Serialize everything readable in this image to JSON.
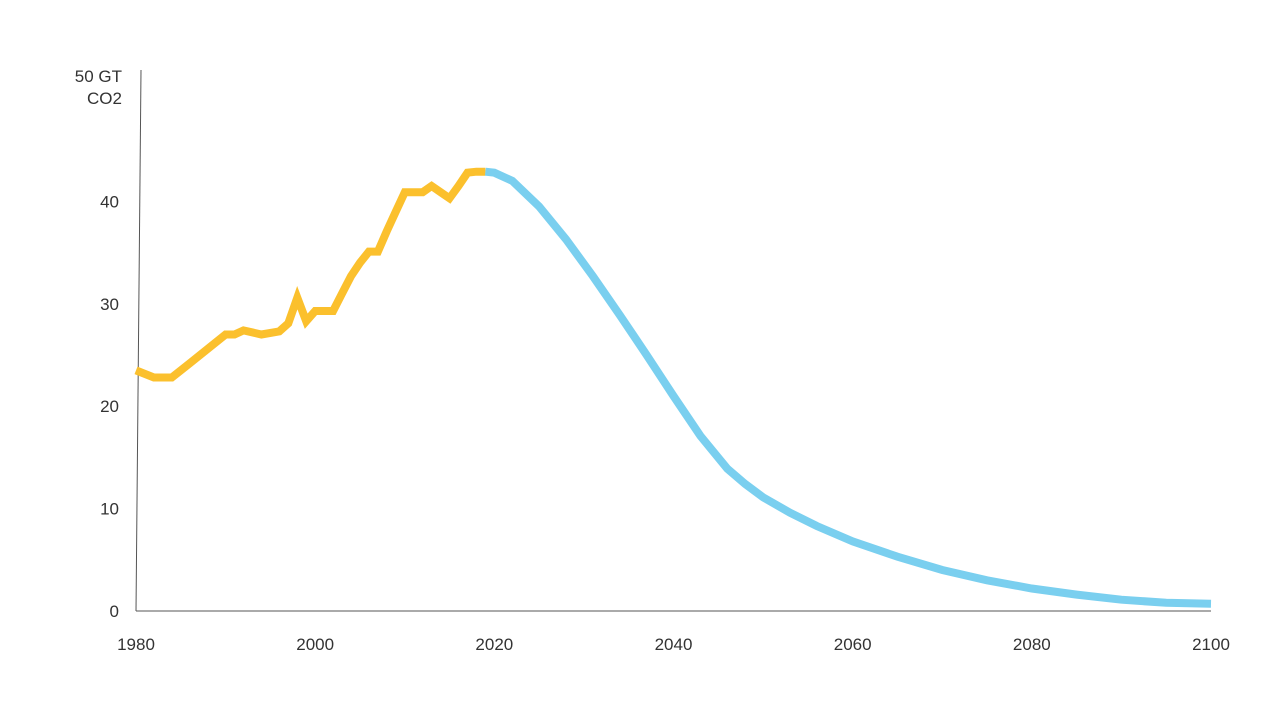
{
  "chart_data": {
    "type": "line",
    "title": "",
    "xlabel": "",
    "ylabel": "",
    "y_unit_label": [
      "50 GT",
      "CO2"
    ],
    "xlim": [
      1980,
      2100
    ],
    "ylim": [
      0,
      50
    ],
    "x_ticks": [
      1980,
      2000,
      2020,
      2040,
      2060,
      2080,
      2100
    ],
    "x_tick_labels": [
      "1980",
      "2000",
      "2020",
      "2040",
      "2060",
      "2080",
      "2100"
    ],
    "y_ticks": [
      0,
      10,
      20,
      30,
      40
    ],
    "y_tick_labels": [
      "0",
      "10",
      "20",
      "30",
      "40"
    ],
    "grid": false,
    "legend": "none",
    "series": [
      {
        "color": "#FBC02D",
        "x": [
          1980,
          1982,
          1984,
          1986,
          1988,
          1990,
          1991,
          1992,
          1994,
          1996,
          1997,
          1998,
          1999,
          2000,
          2001,
          2002,
          2003,
          2004,
          2005,
          2006,
          2007,
          2008,
          2009,
          2010,
          2011,
          2012,
          2013,
          2014,
          2015,
          2016,
          2017,
          2018,
          2019
        ],
        "y": [
          23.5,
          22.8,
          22.8,
          24.2,
          25.6,
          27.0,
          27.0,
          27.4,
          27.0,
          27.3,
          28.1,
          30.6,
          28.3,
          29.3,
          29.3,
          29.3,
          31.0,
          32.7,
          34.0,
          35.1,
          35.1,
          37.1,
          39.0,
          40.9,
          40.9,
          40.9,
          41.5,
          40.9,
          40.3,
          41.5,
          42.8,
          42.9,
          42.9
        ]
      },
      {
        "color": "#7ACFEF",
        "x": [
          2019,
          2020,
          2022,
          2025,
          2028,
          2031,
          2034,
          2037,
          2040,
          2043,
          2046,
          2048,
          2050,
          2053,
          2056,
          2060,
          2065,
          2070,
          2075,
          2080,
          2085,
          2090,
          2095,
          2100
        ],
        "y": [
          42.9,
          42.8,
          42.0,
          39.5,
          36.3,
          32.7,
          28.9,
          25.0,
          21.0,
          17.1,
          13.9,
          12.4,
          11.1,
          9.6,
          8.3,
          6.8,
          5.3,
          4.0,
          3.0,
          2.2,
          1.6,
          1.1,
          0.8,
          0.7
        ]
      }
    ]
  }
}
